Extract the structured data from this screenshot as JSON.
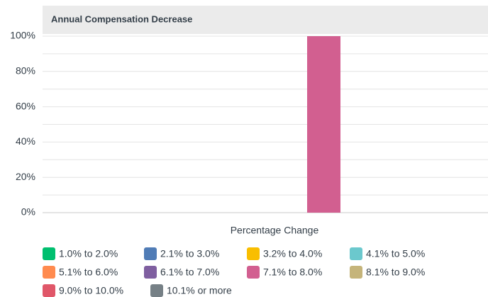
{
  "chart_data": {
    "type": "bar",
    "categories": [
      "Annual Compensation Decrease"
    ],
    "x_label": "Percentage Change",
    "ylim": [
      0,
      100
    ],
    "yticks": [
      {
        "value": 0,
        "label": "0%"
      },
      {
        "value": 20,
        "label": "20%"
      },
      {
        "value": 40,
        "label": "40%"
      },
      {
        "value": 60,
        "label": "60%"
      },
      {
        "value": 80,
        "label": "80%"
      },
      {
        "value": 100,
        "label": "100%"
      }
    ],
    "minor_yticks": [
      10,
      30,
      50,
      70,
      90
    ],
    "grid": true,
    "legend": "bottom",
    "series": [
      {
        "name": "1.0% to 2.0%",
        "color": "#00bf6f",
        "values": [
          0
        ]
      },
      {
        "name": "2.1% to 3.0%",
        "color": "#507cb6",
        "values": [
          0
        ]
      },
      {
        "name": "3.2% to 4.0%",
        "color": "#f9be00",
        "values": [
          0
        ]
      },
      {
        "name": "4.1% to 5.0%",
        "color": "#6bc8cd",
        "values": [
          0
        ]
      },
      {
        "name": "5.1% to 6.0%",
        "color": "#ff8b4f",
        "values": [
          0
        ]
      },
      {
        "name": "6.1% to 7.0%",
        "color": "#7f5fa0",
        "values": [
          0
        ]
      },
      {
        "name": "7.1% to 8.0%",
        "color": "#d25f90",
        "values": [
          100
        ]
      },
      {
        "name": "8.1% to 9.0%",
        "color": "#c5b47a",
        "values": [
          0
        ]
      },
      {
        "name": "9.0% to 10.0%",
        "color": "#e05769",
        "values": [
          0
        ]
      },
      {
        "name": "10.1% or more",
        "color": "#768086",
        "values": [
          0
        ]
      }
    ]
  }
}
